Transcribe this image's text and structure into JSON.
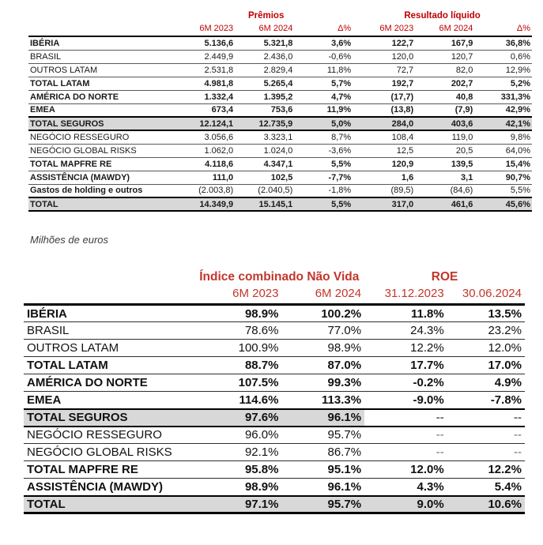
{
  "colors": {
    "header_red": "#C00000",
    "header_red_2": "#C2362B",
    "row_band_gray": "#D8D8D8"
  },
  "note": "Milhões de euros",
  "table1": {
    "group_headers": [
      "Prêmios",
      "Resultado líquido"
    ],
    "col_headers": [
      "6M 2023",
      "6M 2024",
      "Δ%",
      "6M 2023",
      "6M 2024",
      "Δ%"
    ],
    "rows": [
      {
        "label": "IBÉRIA",
        "bold": true,
        "values": [
          "5.136,6",
          "5.321,8",
          "3,6%",
          "122,7",
          "167,9",
          "36,8%"
        ]
      },
      {
        "label": "BRASIL",
        "values": [
          "2.449,9",
          "2.436,0",
          "-0,6%",
          "120,0",
          "120,7",
          "0,6%"
        ]
      },
      {
        "label": "OUTROS LATAM",
        "values": [
          "2.531,8",
          "2.829,4",
          "11,8%",
          "72,7",
          "82,0",
          "12,9%"
        ]
      },
      {
        "label": "TOTAL LATAM",
        "bold": true,
        "values": [
          "4.981,8",
          "5.265,4",
          "5,7%",
          "192,7",
          "202,7",
          "5,2%"
        ]
      },
      {
        "label": "AMÉRICA DO NORTE",
        "bold": true,
        "values": [
          "1.332,4",
          "1.395,2",
          "4,7%",
          "(17,7)",
          "40,8",
          "331,3%"
        ]
      },
      {
        "label": "EMEA",
        "bold": true,
        "values": [
          "673,4",
          "753,6",
          "11,9%",
          "(13,8)",
          "(7,9)",
          "42,9%"
        ]
      },
      {
        "label": "TOTAL SEGUROS",
        "bold": true,
        "band": true,
        "values": [
          "12.124,1",
          "12.735,9",
          "5,0%",
          "284,0",
          "403,6",
          "42,1%"
        ]
      },
      {
        "label": "NEGÓCIO RESSEGURO",
        "values": [
          "3.056,6",
          "3.323,1",
          "8,7%",
          "108,4",
          "119,0",
          "9,8%"
        ]
      },
      {
        "label": "NEGÓCIO GLOBAL RISKS",
        "values": [
          "1.062,0",
          "1.024,0",
          "-3,6%",
          "12,5",
          "20,5",
          "64,0%"
        ]
      },
      {
        "label": "TOTAL MAPFRE RE",
        "bold": true,
        "values": [
          "4.118,6",
          "4.347,1",
          "5,5%",
          "120,9",
          "139,5",
          "15,4%"
        ]
      },
      {
        "label": "ASSISTÊNCIA (MAWDY)",
        "bold": true,
        "values": [
          "111,0",
          "102,5",
          "-7,7%",
          "1,6",
          "3,1",
          "90,7%"
        ]
      },
      {
        "label": "Gastos de holding e outros",
        "label_bold": true,
        "values": [
          "(2.003,8)",
          "(2.040,5)",
          "-1,8%",
          "(89,5)",
          "(84,6)",
          "5,5%"
        ]
      },
      {
        "label": "TOTAL",
        "bold": true,
        "band": true,
        "final": true,
        "values": [
          "14.349,9",
          "15.145,1",
          "5,5%",
          "317,0",
          "461,6",
          "45,6%"
        ]
      }
    ]
  },
  "table2": {
    "group_headers": [
      "Índice combinado Não Vida",
      "ROE"
    ],
    "col_headers": [
      "6M 2023",
      "6M 2024",
      "31.12.2023",
      "30.06.2024"
    ],
    "rows": [
      {
        "label": "IBÉRIA",
        "bold": true,
        "values": [
          "98.9%",
          "100.2%",
          "11.8%",
          "13.5%"
        ]
      },
      {
        "label": "BRASIL",
        "values": [
          "78.6%",
          "77.0%",
          "24.3%",
          "23.2%"
        ]
      },
      {
        "label": "OUTROS LATAM",
        "values": [
          "100.9%",
          "98.9%",
          "12.2%",
          "12.0%"
        ]
      },
      {
        "label": "TOTAL LATAM",
        "bold": true,
        "values": [
          "88.7%",
          "87.0%",
          "17.7%",
          "17.0%"
        ]
      },
      {
        "label": "AMÉRICA DO NORTE",
        "bold": true,
        "values": [
          "107.5%",
          "99.3%",
          "-0.2%",
          "4.9%"
        ]
      },
      {
        "label": "EMEA",
        "bold": true,
        "values": [
          "114.6%",
          "113.3%",
          "-9.0%",
          "-7.8%"
        ]
      },
      {
        "label": "TOTAL SEGUROS",
        "bold": true,
        "band": true,
        "band_cols": 3,
        "values": [
          "97.6%",
          "96.1%",
          "--",
          "--"
        ]
      },
      {
        "label": "NEGÓCIO RESSEGURO",
        "values": [
          "96.0%",
          "95.7%",
          "--",
          "--"
        ]
      },
      {
        "label": "NEGÓCIO GLOBAL RISKS",
        "values": [
          "92.1%",
          "86.7%",
          "--",
          "--"
        ]
      },
      {
        "label": "TOTAL MAPFRE RE",
        "bold": true,
        "values": [
          "95.8%",
          "95.1%",
          "12.0%",
          "12.2%"
        ]
      },
      {
        "label": "ASSISTÊNCIA (MAWDY)",
        "bold": true,
        "values": [
          "98.9%",
          "96.1%",
          "4.3%",
          "5.4%"
        ]
      },
      {
        "label": "TOTAL",
        "bold": true,
        "band": true,
        "final": true,
        "values": [
          "97.1%",
          "95.7%",
          "9.0%",
          "10.6%"
        ]
      }
    ]
  }
}
